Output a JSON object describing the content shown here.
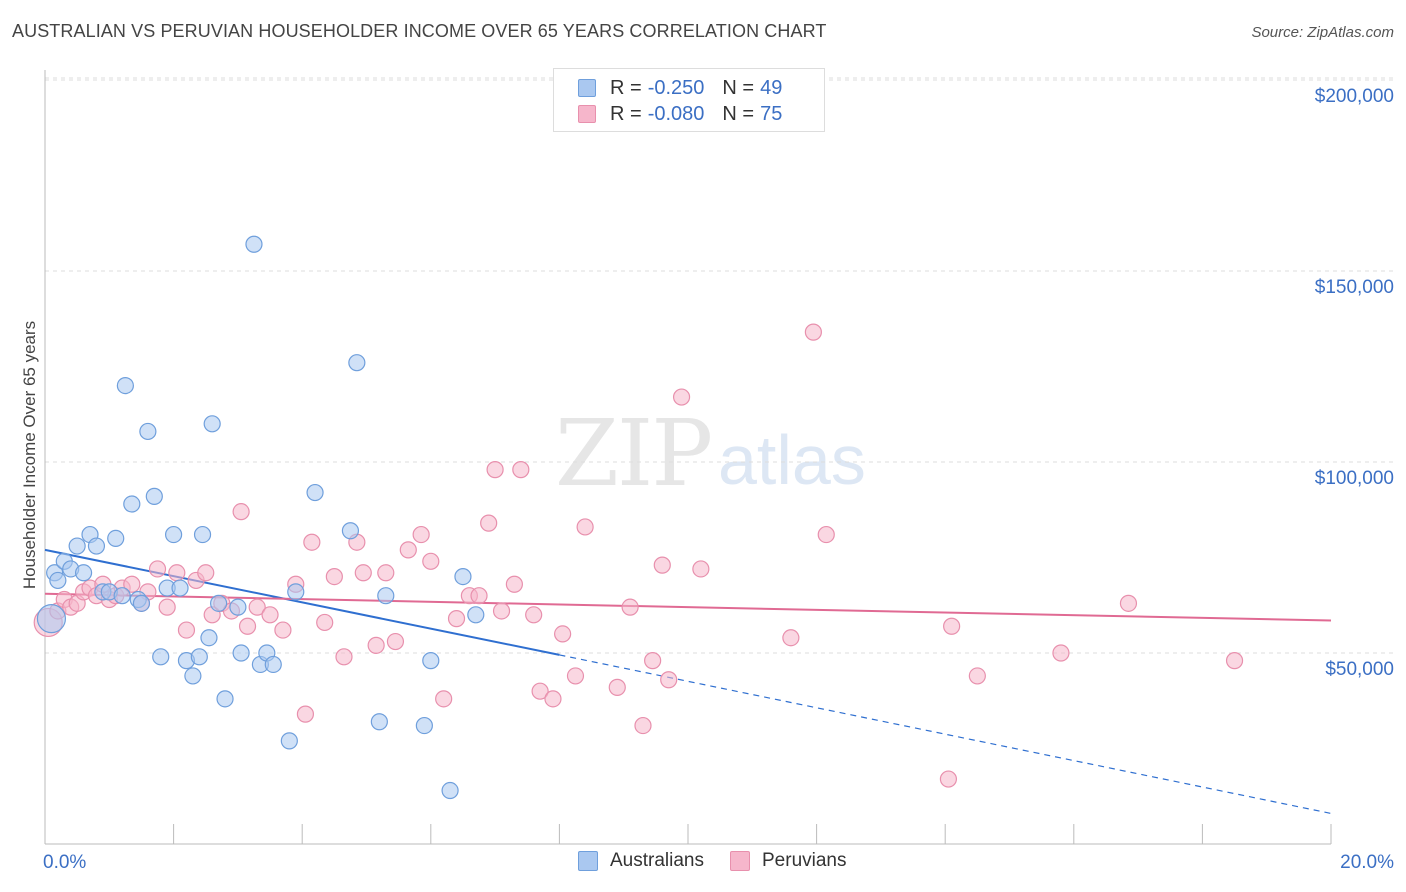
{
  "header": {
    "title": "AUSTRALIAN VS PERUVIAN HOUSEHOLDER INCOME OVER 65 YEARS CORRELATION CHART",
    "source": "Source: ZipAtlas.com"
  },
  "watermark": {
    "zip": "ZIP",
    "atlas": "atlas"
  },
  "legend_top": {
    "rows": [
      {
        "r_label": "R =",
        "r_value": "-0.250",
        "n_label": "N =",
        "n_value": "49",
        "color": "#aac8f0"
      },
      {
        "r_label": "R =",
        "r_value": "-0.080",
        "n_label": "N =",
        "n_value": "75",
        "color": "#f6b6cb"
      }
    ]
  },
  "legend_bottom": {
    "items": [
      {
        "label": "Australians",
        "color": "#aac8f0"
      },
      {
        "label": "Peruvians",
        "color": "#f6b6cb"
      }
    ]
  },
  "colors": {
    "blue_fill": "#aac8f0",
    "blue_stroke": "#6f9fdc",
    "blue_line": "#2f6fd0",
    "pink_fill": "#f6b6cb",
    "pink_stroke": "#e890ad",
    "pink_line": "#e06a93",
    "tick_text": "#3b6fc4",
    "grid": "#dddddd"
  },
  "chart_data": {
    "type": "scatter",
    "title": "AUSTRALIAN VS PERUVIAN HOUSEHOLDER INCOME OVER 65 YEARS CORRELATION CHART",
    "xlabel": "",
    "ylabel": "Householder Income Over 65 years",
    "xlim": [
      0,
      20
    ],
    "ylim": [
      0,
      210000
    ],
    "x_tick_labels": [
      "0.0%",
      "20.0%"
    ],
    "y_ticks": [
      50000,
      100000,
      150000,
      200000
    ],
    "y_tick_labels": [
      "$50,000",
      "$100,000",
      "$150,000",
      "$200,000"
    ],
    "grid": true,
    "legend_placement": "top-center",
    "series": [
      {
        "name": "Australians",
        "r": -0.25,
        "n": 49,
        "trend": {
          "x0": 0,
          "y0": 77000,
          "x1": 8,
          "y1": 49500,
          "dashed_to_x": 20,
          "dashed_to_y": 8000
        },
        "points": [
          [
            0.1,
            59000
          ],
          [
            0.15,
            71000
          ],
          [
            0.2,
            69000
          ],
          [
            0.3,
            74000
          ],
          [
            0.4,
            72000
          ],
          [
            0.5,
            78000
          ],
          [
            0.6,
            71000
          ],
          [
            0.7,
            81000
          ],
          [
            0.8,
            78000
          ],
          [
            0.9,
            66000
          ],
          [
            1.0,
            66000
          ],
          [
            1.1,
            80000
          ],
          [
            1.2,
            65000
          ],
          [
            1.25,
            120000
          ],
          [
            1.35,
            89000
          ],
          [
            1.45,
            64000
          ],
          [
            1.5,
            63000
          ],
          [
            1.6,
            108000
          ],
          [
            1.7,
            91000
          ],
          [
            1.8,
            49000
          ],
          [
            1.9,
            67000
          ],
          [
            2.0,
            81000
          ],
          [
            2.1,
            67000
          ],
          [
            2.2,
            48000
          ],
          [
            2.3,
            44000
          ],
          [
            2.4,
            49000
          ],
          [
            2.45,
            81000
          ],
          [
            2.55,
            54000
          ],
          [
            2.6,
            110000
          ],
          [
            2.7,
            63000
          ],
          [
            2.8,
            38000
          ],
          [
            3.0,
            62000
          ],
          [
            3.05,
            50000
          ],
          [
            3.25,
            157000
          ],
          [
            3.35,
            47000
          ],
          [
            3.45,
            50000
          ],
          [
            3.55,
            47000
          ],
          [
            3.8,
            27000
          ],
          [
            3.9,
            66000
          ],
          [
            4.2,
            92000
          ],
          [
            4.75,
            82000
          ],
          [
            4.85,
            126000
          ],
          [
            5.2,
            32000
          ],
          [
            5.3,
            65000
          ],
          [
            5.9,
            31000
          ],
          [
            6.0,
            48000
          ],
          [
            6.3,
            14000
          ],
          [
            6.5,
            70000
          ],
          [
            6.7,
            60000
          ]
        ]
      },
      {
        "name": "Peruvians",
        "r": -0.08,
        "n": 75,
        "trend": {
          "x0": 0,
          "y0": 65500,
          "x1": 20,
          "y1": 58500
        },
        "points": [
          [
            0.05,
            58000
          ],
          [
            0.2,
            61000
          ],
          [
            0.3,
            64000
          ],
          [
            0.4,
            62000
          ],
          [
            0.5,
            63000
          ],
          [
            0.6,
            66000
          ],
          [
            0.7,
            67000
          ],
          [
            0.8,
            65000
          ],
          [
            0.9,
            68000
          ],
          [
            1.0,
            64000
          ],
          [
            1.1,
            65000
          ],
          [
            1.2,
            67000
          ],
          [
            1.35,
            68000
          ],
          [
            1.5,
            63000
          ],
          [
            1.6,
            66000
          ],
          [
            1.75,
            72000
          ],
          [
            1.9,
            62000
          ],
          [
            2.05,
            71000
          ],
          [
            2.2,
            56000
          ],
          [
            2.35,
            69000
          ],
          [
            2.5,
            71000
          ],
          [
            2.6,
            60000
          ],
          [
            2.75,
            63000
          ],
          [
            2.9,
            61000
          ],
          [
            3.05,
            87000
          ],
          [
            3.15,
            57000
          ],
          [
            3.3,
            62000
          ],
          [
            3.5,
            60000
          ],
          [
            3.7,
            56000
          ],
          [
            3.9,
            68000
          ],
          [
            4.05,
            34000
          ],
          [
            4.15,
            79000
          ],
          [
            4.35,
            58000
          ],
          [
            4.5,
            70000
          ],
          [
            4.65,
            49000
          ],
          [
            4.85,
            79000
          ],
          [
            4.95,
            71000
          ],
          [
            5.15,
            52000
          ],
          [
            5.3,
            71000
          ],
          [
            5.45,
            53000
          ],
          [
            5.65,
            77000
          ],
          [
            5.85,
            81000
          ],
          [
            6.0,
            74000
          ],
          [
            6.2,
            38000
          ],
          [
            6.4,
            59000
          ],
          [
            6.6,
            65000
          ],
          [
            6.75,
            65000
          ],
          [
            6.9,
            84000
          ],
          [
            7.0,
            98000
          ],
          [
            7.1,
            61000
          ],
          [
            7.3,
            68000
          ],
          [
            7.4,
            98000
          ],
          [
            7.6,
            60000
          ],
          [
            7.7,
            40000
          ],
          [
            7.9,
            38000
          ],
          [
            8.05,
            55000
          ],
          [
            8.25,
            44000
          ],
          [
            8.4,
            83000
          ],
          [
            8.9,
            41000
          ],
          [
            9.1,
            62000
          ],
          [
            9.3,
            31000
          ],
          [
            9.45,
            48000
          ],
          [
            9.6,
            73000
          ],
          [
            9.7,
            43000
          ],
          [
            9.9,
            117000
          ],
          [
            10.2,
            72000
          ],
          [
            11.6,
            54000
          ],
          [
            11.95,
            134000
          ],
          [
            12.15,
            81000
          ],
          [
            14.05,
            17000
          ],
          [
            14.1,
            57000
          ],
          [
            14.5,
            44000
          ],
          [
            15.8,
            50000
          ],
          [
            16.85,
            63000
          ],
          [
            18.5,
            48000
          ]
        ]
      }
    ]
  }
}
